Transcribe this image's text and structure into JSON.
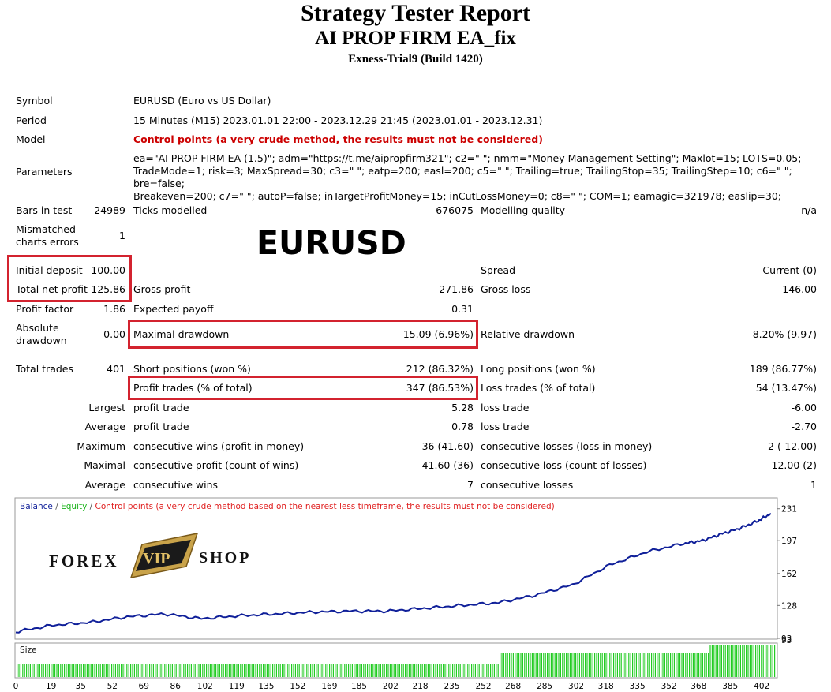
{
  "report": {
    "title": "Strategy Tester Report",
    "ea_name": "AI PROP FIRM EA_fix",
    "server": "Exness-Trial9 (Build 1420)"
  },
  "info": {
    "symbol_label": "Symbol",
    "symbol_value": "EURUSD (Euro vs US Dollar)",
    "period_label": "Period",
    "period_value": "15 Minutes (M15) 2023.01.01 22:00 - 2023.12.29 21:45 (2023.01.01 - 2023.12.31)",
    "model_label": "Model",
    "model_value": "Control points (a very crude method, the results must not be considered)",
    "parameters_label": "Parameters",
    "parameters_lines": [
      "ea=\"AI PROP FIRM EA (1.5)\"; adm=\"https://t.me/aipropfirm321\"; c2=\" \"; nmm=\"Money Management Setting\"; Maxlot=15; LOTS=0.05;",
      "TradeMode=1; risk=3; MaxSpread=30; c3=\" \"; eatp=200; easl=200; c5=\" \"; Trailing=true; TrailingStop=35; TrailingStep=10; c6=\" \"; bre=false;",
      "Breakeven=200; c7=\" \"; autoP=false; inTargetProfitMoney=15; inCutLossMoney=0; c8=\" \"; COM=1; eamagic=321978; easlip=30;"
    ]
  },
  "overlay_symbol": "EURUSD",
  "stats": {
    "bars_label": "Bars in test",
    "bars_value": "24989",
    "ticks_label": "Ticks modelled",
    "ticks_value": "676075",
    "quality_label": "Modelling quality",
    "quality_value": "n/a",
    "mismatch_label_1": "Mismatched",
    "mismatch_label_2": "charts errors",
    "mismatch_value": "1",
    "deposit_label": "Initial deposit",
    "deposit_value": "100.00",
    "spread_label": "Spread",
    "spread_value": "Current (0)",
    "net_profit_label": "Total net profit",
    "net_profit_value": "125.86",
    "gross_profit_label": "Gross profit",
    "gross_profit_value": "271.86",
    "gross_loss_label": "Gross loss",
    "gross_loss_value": "-146.00",
    "profit_factor_label": "Profit factor",
    "profit_factor_value": "1.86",
    "expected_payoff_label": "Expected payoff",
    "expected_payoff_value": "0.31",
    "abs_dd_label_1": "Absolute",
    "abs_dd_label_2": "drawdown",
    "abs_dd_value": "0.00",
    "max_dd_label": "Maximal drawdown",
    "max_dd_value": "15.09 (6.96%)",
    "rel_dd_label": "Relative drawdown",
    "rel_dd_value": "8.20% (9.97)",
    "total_trades_label": "Total trades",
    "total_trades_value": "401",
    "short_label": "Short positions (won %)",
    "short_value": "212 (86.32%)",
    "long_label": "Long positions (won %)",
    "long_value": "189 (86.77%)",
    "profit_trades_label": "Profit trades (% of total)",
    "profit_trades_value": "347 (86.53%)",
    "loss_trades_label": "Loss trades (% of total)",
    "loss_trades_value": "54 (13.47%)",
    "largest_label": "Largest",
    "largest_profit_label": "profit trade",
    "largest_profit_value": "5.28",
    "largest_loss_label": "loss trade",
    "largest_loss_value": "-6.00",
    "average_label": "Average",
    "average_profit_label": "profit trade",
    "average_profit_value": "0.78",
    "average_loss_label": "loss trade",
    "average_loss_value": "-2.70",
    "maximum_label": "Maximum",
    "max_cons_wins_label": "consecutive wins (profit in money)",
    "max_cons_wins_value": "36 (41.60)",
    "max_cons_losses_label": "consecutive losses (loss in money)",
    "max_cons_losses_value": "2 (-12.00)",
    "maximal_label": "Maximal",
    "maximal_cons_profit_label": "consecutive profit (count of wins)",
    "maximal_cons_profit_value": "41.60 (36)",
    "maximal_cons_loss_label": "consecutive loss (count of losses)",
    "maximal_cons_loss_value": "-12.00 (2)",
    "avg2_label": "Average",
    "avg_cons_wins_label": "consecutive wins",
    "avg_cons_wins_value": "7",
    "avg_cons_losses_label": "consecutive losses",
    "avg_cons_losses_value": "1"
  },
  "legend": {
    "balance": "Balance",
    "sep1": " / ",
    "equity": "Equity",
    "sep2": " / ",
    "model": "Control points (a very crude method based on the nearest less timeframe, the results must not be considered)"
  },
  "watermark": {
    "left": "FOREX",
    "badge": "VIP",
    "right": "SHOP"
  },
  "size_label": "Size",
  "colors": {
    "balance": "#0f1f99",
    "equity": "#1bb31b",
    "model_text": "#e02020",
    "size_bar": "#22cc22",
    "highlight": "#d3232f"
  },
  "chart_data": {
    "type": "line",
    "x": [
      0,
      20,
      40,
      60,
      80,
      100,
      120,
      140,
      160,
      180,
      200,
      220,
      240,
      260,
      280,
      300,
      320,
      340,
      360,
      370,
      380,
      390,
      400,
      407
    ],
    "series": [
      {
        "name": "Balance",
        "values": [
          100,
          107,
          110,
          116,
          119,
          114,
          117,
          119,
          121,
          122,
          122,
          125,
          128,
          131,
          139,
          150,
          171,
          185,
          194,
          197,
          204,
          210,
          218,
          225.86
        ]
      }
    ],
    "ylim": [
      93,
      240
    ],
    "y_ticks": [
      "231",
      "197",
      "162",
      "128",
      "93"
    ],
    "y_tick_values": [
      231,
      197,
      162,
      128,
      93
    ],
    "x_ticks": [
      "0",
      "19",
      "35",
      "52",
      "69",
      "86",
      "102",
      "119",
      "135",
      "152",
      "169",
      "185",
      "202",
      "218",
      "235",
      "252",
      "268",
      "285",
      "302",
      "318",
      "335",
      "352",
      "368",
      "385",
      "402"
    ],
    "xlim": [
      0,
      410
    ]
  }
}
